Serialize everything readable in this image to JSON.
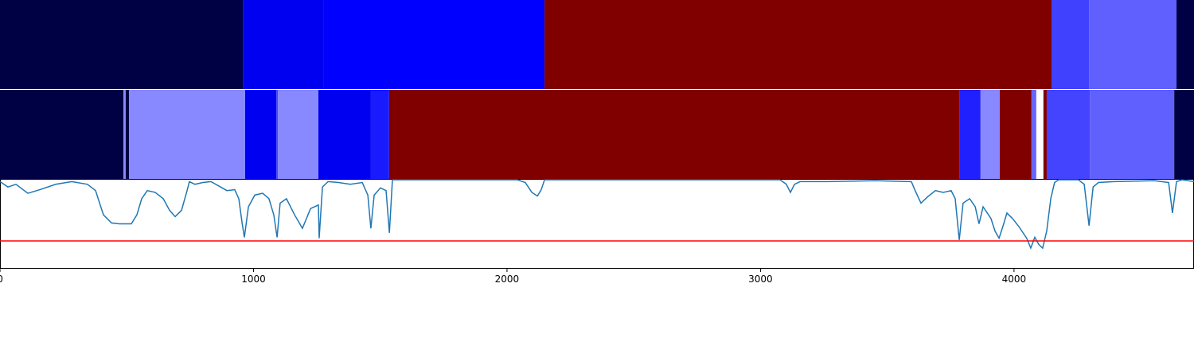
{
  "chart_data": {
    "type": "timeline",
    "xlim": [
      0,
      4710
    ],
    "xticks": [
      0,
      1000,
      2000,
      3000,
      4000
    ],
    "ylim": [
      0,
      1
    ],
    "tracks": [
      {
        "segments": [
          {
            "start": 0,
            "end": 958,
            "color": "#000044"
          },
          {
            "start": 958,
            "end": 1275,
            "color": "#0000f0"
          },
          {
            "start": 1275,
            "end": 2148,
            "color": "#0000ff"
          },
          {
            "start": 2148,
            "end": 4148,
            "color": "#800000"
          },
          {
            "start": 4148,
            "end": 4296,
            "color": "#4040ff"
          },
          {
            "start": 4296,
            "end": 4641,
            "color": "#6060ff"
          },
          {
            "start": 4641,
            "end": 4710,
            "color": "#000044"
          }
        ]
      },
      {
        "segments": [
          {
            "start": 0,
            "end": 487,
            "color": "#000044"
          },
          {
            "start": 487,
            "end": 496,
            "color": "#8888ff"
          },
          {
            "start": 496,
            "end": 509,
            "color": "#000044"
          },
          {
            "start": 509,
            "end": 967,
            "color": "#8888ff"
          },
          {
            "start": 967,
            "end": 1090,
            "color": "#0000f0"
          },
          {
            "start": 1090,
            "end": 1096,
            "color": "#4444ff"
          },
          {
            "start": 1096,
            "end": 1256,
            "color": "#8888ff"
          },
          {
            "start": 1256,
            "end": 1463,
            "color": "#0000f0"
          },
          {
            "start": 1463,
            "end": 1535,
            "color": "#1a1aff"
          },
          {
            "start": 1535,
            "end": 3784,
            "color": "#800000"
          },
          {
            "start": 3784,
            "end": 3868,
            "color": "#2020ff"
          },
          {
            "start": 3868,
            "end": 3944,
            "color": "#8888ff"
          },
          {
            "start": 3944,
            "end": 4069,
            "color": "#800000"
          },
          {
            "start": 4069,
            "end": 4088,
            "color": "#6666ff"
          },
          {
            "start": 4088,
            "end": 4116,
            "color": "#ffffff"
          },
          {
            "start": 4116,
            "end": 4129,
            "color": "#800000"
          },
          {
            "start": 4129,
            "end": 4299,
            "color": "#4444ff"
          },
          {
            "start": 4299,
            "end": 4632,
            "color": "#6060ff"
          },
          {
            "start": 4632,
            "end": 4710,
            "color": "#000044"
          }
        ]
      }
    ],
    "series": [
      {
        "color": "#1f77b4",
        "x": [
          0,
          31,
          63,
          110,
          157,
          220,
          283,
          345,
          377,
          393,
          408,
          440,
          471,
          518,
          540,
          559,
          581,
          612,
          644,
          669,
          691,
          716,
          738,
          747,
          769,
          801,
          832,
          864,
          895,
          926,
          942,
          955,
          964,
          980,
          1005,
          1036,
          1061,
          1080,
          1093,
          1105,
          1130,
          1162,
          1193,
          1225,
          1256,
          1259,
          1272,
          1294,
          1335,
          1382,
          1429,
          1451,
          1463,
          1476,
          1501,
          1523,
          1536,
          1548,
          1570,
          2041,
          2072,
          2098,
          2120,
          2135,
          2148,
          3077,
          3102,
          3118,
          3134,
          3156,
          3266,
          3454,
          3595,
          3610,
          3633,
          3659,
          3690,
          3721,
          3752,
          3768,
          3784,
          3799,
          3825,
          3847,
          3862,
          3878,
          3909,
          3925,
          3941,
          3956,
          3972,
          3994,
          4019,
          4050,
          4066,
          4082,
          4098,
          4113,
          4129,
          4145,
          4160,
          4176,
          4254,
          4277,
          4296,
          4312,
          4333,
          4396,
          4553,
          4610,
          4625,
          4641,
          4663,
          4710
        ],
        "values": [
          0.97,
          0.91,
          0.94,
          0.84,
          0.88,
          0.94,
          0.97,
          0.94,
          0.87,
          0.73,
          0.6,
          0.51,
          0.5,
          0.5,
          0.6,
          0.78,
          0.87,
          0.85,
          0.78,
          0.65,
          0.58,
          0.65,
          0.87,
          0.97,
          0.94,
          0.96,
          0.97,
          0.92,
          0.87,
          0.88,
          0.78,
          0.51,
          0.35,
          0.69,
          0.82,
          0.84,
          0.78,
          0.6,
          0.35,
          0.73,
          0.78,
          0.6,
          0.45,
          0.67,
          0.71,
          0.34,
          0.91,
          0.97,
          0.96,
          0.94,
          0.96,
          0.82,
          0.45,
          0.82,
          0.9,
          0.87,
          0.4,
          0.99,
          0.99,
          0.99,
          0.96,
          0.85,
          0.81,
          0.88,
          0.99,
          0.99,
          0.94,
          0.85,
          0.94,
          0.97,
          0.97,
          0.98,
          0.97,
          0.87,
          0.73,
          0.8,
          0.87,
          0.85,
          0.87,
          0.78,
          0.32,
          0.73,
          0.78,
          0.69,
          0.5,
          0.69,
          0.56,
          0.42,
          0.34,
          0.47,
          0.62,
          0.56,
          0.47,
          0.34,
          0.23,
          0.35,
          0.27,
          0.23,
          0.42,
          0.78,
          0.96,
          0.99,
          0.99,
          0.94,
          0.48,
          0.91,
          0.96,
          0.97,
          0.98,
          0.96,
          0.62,
          0.97,
          0.99,
          0.97
        ]
      }
    ],
    "threshold": {
      "value": 0.31,
      "color": "#ff0000"
    }
  }
}
